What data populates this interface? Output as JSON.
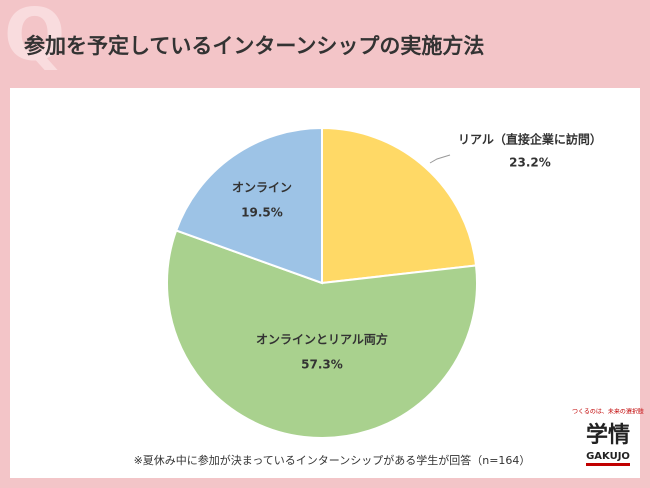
{
  "header": {
    "q_mark": "Q",
    "title": "参加を予定しているインターンシップの実施方法"
  },
  "chart_data": {
    "type": "pie",
    "categories": [
      "リアル（直接企業に訪問）",
      "オンラインとリアル両方",
      "オンライン"
    ],
    "values": [
      23.2,
      57.3,
      19.5
    ],
    "value_labels": [
      "23.2%",
      "57.3%",
      "19.5%"
    ],
    "colors": [
      "#ffd966",
      "#a9d18e",
      "#9dc3e6"
    ]
  },
  "footnote": "※夏休み中に参加が決まっているインターンシップがある学生が回答（n=164）",
  "logo": {
    "tagline": "つくるのは、未来の選択肢",
    "name": "学情",
    "roman": "GAKUJO"
  }
}
